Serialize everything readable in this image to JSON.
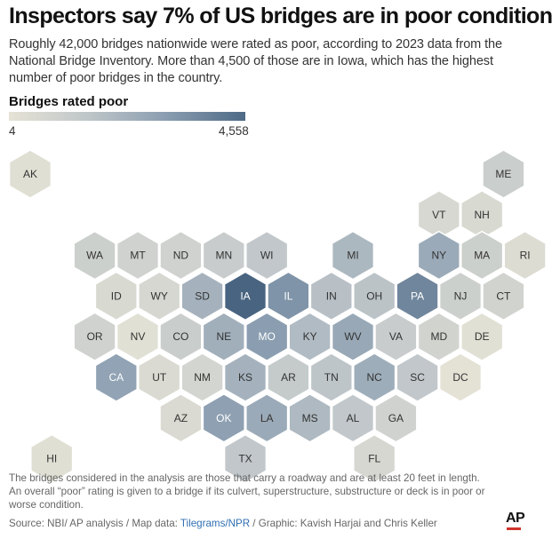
{
  "title": "Inspectors say 7% of US bridges are in poor condition",
  "subtitle": "Roughly 42,000 bridges nationwide were rated as poor, according to 2023 data from the National Bridge Inventory. More than 4,500 of those are in Iowa, which has the highest number of poor bridges in the country.",
  "legend": {
    "title": "Bridges rated poor",
    "min_label": "4",
    "max_label": "4,558",
    "min": 4,
    "max": 4558
  },
  "note": "The bridges considered in the analysis are those that carry a roadway and are at least 20 feet in length. An overall “poor” rating is given to a bridge if its culvert, superstructure, substructure or deck is in poor or worse condition.",
  "source": {
    "prefix": "Source: NBI/ AP analysis / Map data: ",
    "link": "Tilegrams/NPR",
    "suffix": " / Graphic: Kavish Harjai and Chris Keller"
  },
  "logo": "AP",
  "map": {
    "states": [
      {
        "abbr": "AK",
        "row": 0,
        "col": 0,
        "level": 0.05
      },
      {
        "abbr": "ME",
        "row": 0,
        "col": 11,
        "level": 0.24
      },
      {
        "abbr": "VT",
        "row": 1,
        "col": 9.5,
        "level": 0.13
      },
      {
        "abbr": "NH",
        "row": 1,
        "col": 10.5,
        "level": 0.12
      },
      {
        "abbr": "WA",
        "row": 2,
        "col": 1.5,
        "level": 0.22
      },
      {
        "abbr": "MT",
        "row": 2,
        "col": 2.5,
        "level": 0.2
      },
      {
        "abbr": "ND",
        "row": 2,
        "col": 3.5,
        "level": 0.2
      },
      {
        "abbr": "MN",
        "row": 2,
        "col": 4.5,
        "level": 0.26
      },
      {
        "abbr": "WI",
        "row": 2,
        "col": 5.5,
        "level": 0.32
      },
      {
        "abbr": "MI",
        "row": 2,
        "col": 7.5,
        "level": 0.45
      },
      {
        "abbr": "NY",
        "row": 2,
        "col": 9.5,
        "level": 0.56
      },
      {
        "abbr": "MA",
        "row": 2,
        "col": 10.5,
        "level": 0.22
      },
      {
        "abbr": "RI",
        "row": 2,
        "col": 11.5,
        "level": 0.08
      },
      {
        "abbr": "ID",
        "row": 3,
        "col": 2,
        "level": 0.12
      },
      {
        "abbr": "WY",
        "row": 3,
        "col": 3,
        "level": 0.14
      },
      {
        "abbr": "SD",
        "row": 3,
        "col": 4,
        "level": 0.5
      },
      {
        "abbr": "IA",
        "row": 3,
        "col": 5,
        "level": 1.0
      },
      {
        "abbr": "IL",
        "row": 3,
        "col": 6,
        "level": 0.72
      },
      {
        "abbr": "IN",
        "row": 3,
        "col": 7,
        "level": 0.38
      },
      {
        "abbr": "OH",
        "row": 3,
        "col": 8,
        "level": 0.36
      },
      {
        "abbr": "PA",
        "row": 3,
        "col": 9,
        "level": 0.8
      },
      {
        "abbr": "NJ",
        "row": 3,
        "col": 10,
        "level": 0.22
      },
      {
        "abbr": "CT",
        "row": 3,
        "col": 11,
        "level": 0.18
      },
      {
        "abbr": "OR",
        "row": 4,
        "col": 1.5,
        "level": 0.2
      },
      {
        "abbr": "NV",
        "row": 4,
        "col": 2.5,
        "level": 0.04
      },
      {
        "abbr": "CO",
        "row": 4,
        "col": 3.5,
        "level": 0.25
      },
      {
        "abbr": "NE",
        "row": 4,
        "col": 4.5,
        "level": 0.52
      },
      {
        "abbr": "MO",
        "row": 4,
        "col": 5.5,
        "level": 0.66
      },
      {
        "abbr": "KY",
        "row": 4,
        "col": 6.5,
        "level": 0.42
      },
      {
        "abbr": "WV",
        "row": 4,
        "col": 7.5,
        "level": 0.58
      },
      {
        "abbr": "VA",
        "row": 4,
        "col": 8.5,
        "level": 0.26
      },
      {
        "abbr": "MD",
        "row": 4,
        "col": 9.5,
        "level": 0.18
      },
      {
        "abbr": "DE",
        "row": 4,
        "col": 10.5,
        "level": 0.04
      },
      {
        "abbr": "CA",
        "row": 5,
        "col": 2,
        "level": 0.62
      },
      {
        "abbr": "UT",
        "row": 5,
        "col": 3,
        "level": 0.1
      },
      {
        "abbr": "NM",
        "row": 5,
        "col": 4,
        "level": 0.16
      },
      {
        "abbr": "KS",
        "row": 5,
        "col": 5,
        "level": 0.5
      },
      {
        "abbr": "AR",
        "row": 5,
        "col": 6,
        "level": 0.28
      },
      {
        "abbr": "TN",
        "row": 5,
        "col": 7,
        "level": 0.34
      },
      {
        "abbr": "NC",
        "row": 5,
        "col": 8,
        "level": 0.54
      },
      {
        "abbr": "SC",
        "row": 5,
        "col": 9,
        "level": 0.32
      },
      {
        "abbr": "DC",
        "row": 5,
        "col": 10,
        "level": 0.02
      },
      {
        "abbr": "AZ",
        "row": 6,
        "col": 3.5,
        "level": 0.1
      },
      {
        "abbr": "OK",
        "row": 6,
        "col": 4.5,
        "level": 0.64
      },
      {
        "abbr": "LA",
        "row": 6,
        "col": 5.5,
        "level": 0.56
      },
      {
        "abbr": "MS",
        "row": 6,
        "col": 6.5,
        "level": 0.44
      },
      {
        "abbr": "AL",
        "row": 6,
        "col": 7.5,
        "level": 0.32
      },
      {
        "abbr": "GA",
        "row": 6,
        "col": 8.5,
        "level": 0.2
      },
      {
        "abbr": "HI",
        "row": 7,
        "col": 0.5,
        "level": 0.05
      },
      {
        "abbr": "TX",
        "row": 7,
        "col": 5,
        "level": 0.32
      },
      {
        "abbr": "FL",
        "row": 7,
        "col": 8,
        "level": 0.14
      }
    ]
  }
}
